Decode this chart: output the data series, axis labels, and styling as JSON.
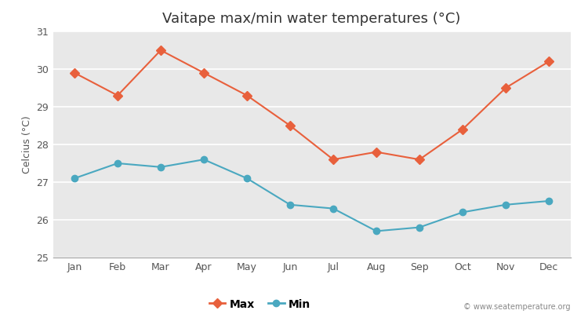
{
  "title": "Vaitape max/min water temperatures (°C)",
  "ylabel": "Celcius (°C)",
  "months": [
    "Jan",
    "Feb",
    "Mar",
    "Apr",
    "May",
    "Jun",
    "Jul",
    "Aug",
    "Sep",
    "Oct",
    "Nov",
    "Dec"
  ],
  "max_temps": [
    29.9,
    29.3,
    30.5,
    29.9,
    29.3,
    28.5,
    27.6,
    27.8,
    27.6,
    28.4,
    29.5,
    30.2
  ],
  "min_temps": [
    27.1,
    27.5,
    27.4,
    27.6,
    27.1,
    26.4,
    26.3,
    25.7,
    25.8,
    26.2,
    26.4,
    26.5
  ],
  "max_color": "#e8603c",
  "min_color": "#4aa8c0",
  "ylim": [
    25,
    31
  ],
  "yticks": [
    25,
    26,
    27,
    28,
    29,
    30,
    31
  ],
  "fig_bg_color": "#ffffff",
  "plot_bg_color": "#e8e8e8",
  "grid_color": "#ffffff",
  "title_fontsize": 13,
  "axis_label_fontsize": 9,
  "tick_fontsize": 9,
  "watermark": "© www.seatemperature.org",
  "max_marker": "D",
  "min_marker": "o",
  "marker_size": 6,
  "line_width": 1.5
}
